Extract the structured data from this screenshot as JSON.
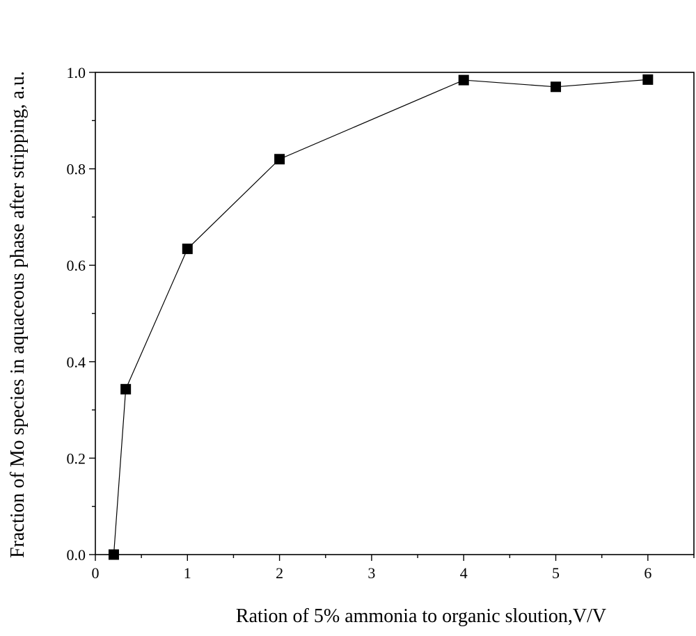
{
  "chart_data": {
    "type": "line",
    "title": "",
    "xlabel": "Ration of 5% ammonia to organic sloution,V/V",
    "ylabel": "Fraction of Mo species in aquaceous phase after stripping, a.u.",
    "xlim": [
      0,
      6.5
    ],
    "ylim": [
      0,
      1.0
    ],
    "xticks": [
      0,
      1,
      2,
      3,
      4,
      5,
      6
    ],
    "xtick_labels": [
      "0",
      "1",
      "2",
      "3",
      "4",
      "5",
      "6"
    ],
    "yticks": [
      0.0,
      0.2,
      0.4,
      0.6,
      0.8,
      1.0
    ],
    "ytick_labels": [
      "0.0",
      "0.2",
      "0.4",
      "0.6",
      "0.8",
      "1.0"
    ],
    "grid": false,
    "marker": "square",
    "series": [
      {
        "x": [
          0.2,
          0.33,
          1,
          2,
          4,
          5,
          6
        ],
        "y": [
          0.0,
          0.343,
          0.634,
          0.82,
          0.984,
          0.97,
          0.985
        ]
      }
    ]
  }
}
